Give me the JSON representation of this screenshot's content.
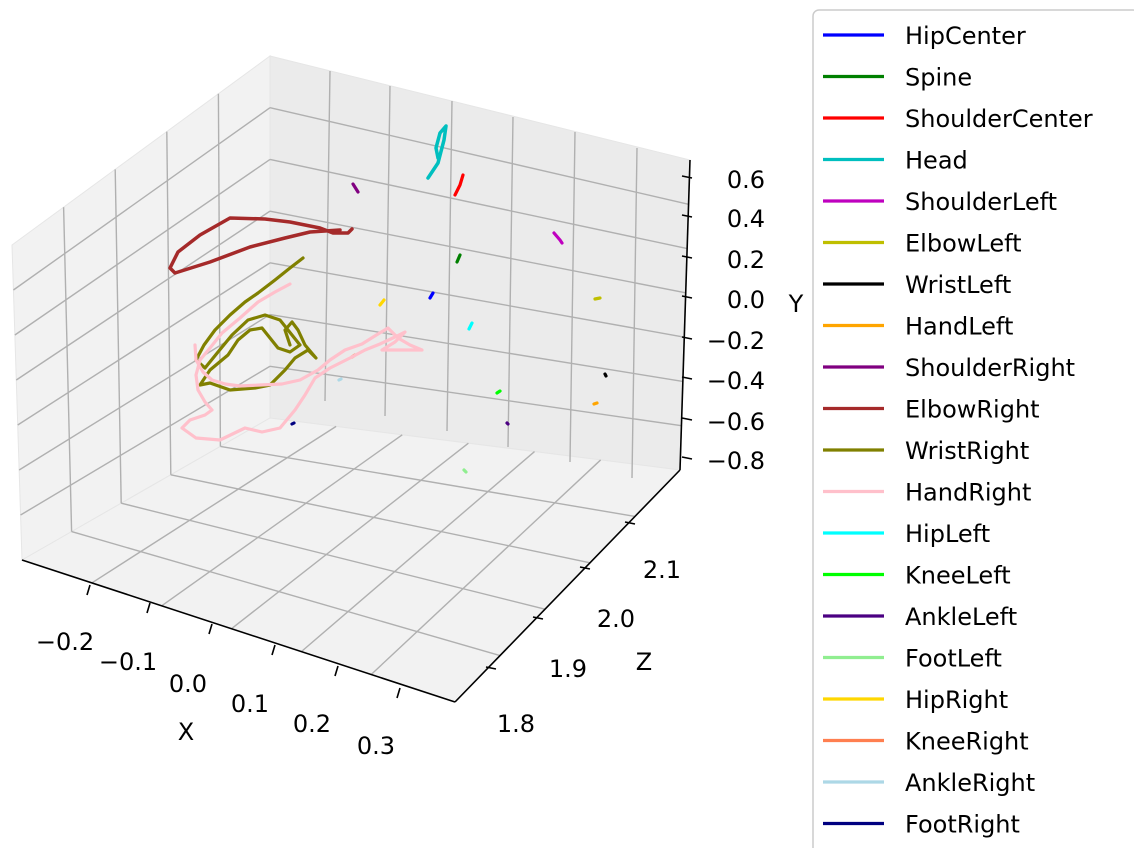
{
  "chart_data": {
    "type": "line",
    "projection": "3d",
    "title": "",
    "xlabel": "X",
    "ylabel": "Y",
    "zlabel": "Z",
    "x_ticks": [
      "−0.2",
      "−0.1",
      "0.0",
      "0.1",
      "0.2",
      "0.3"
    ],
    "y_ticks": [
      "0.6",
      "0.4",
      "0.2",
      "0.0",
      "−0.2",
      "−0.4",
      "−0.6",
      "−0.8"
    ],
    "z_ticks": [
      "2.1",
      "2.0",
      "1.9",
      "1.8"
    ],
    "grid": true,
    "legend_position": "right",
    "series": [
      {
        "name": "HipCenter",
        "color": "#0000ff"
      },
      {
        "name": "Spine",
        "color": "#008000"
      },
      {
        "name": "ShoulderCenter",
        "color": "#ff0000"
      },
      {
        "name": "Head",
        "color": "#00bfbf"
      },
      {
        "name": "ShoulderLeft",
        "color": "#bf00bf"
      },
      {
        "name": "ElbowLeft",
        "color": "#bfbf00"
      },
      {
        "name": "WristLeft",
        "color": "#000000"
      },
      {
        "name": "HandLeft",
        "color": "#ffa500"
      },
      {
        "name": "ShoulderRight",
        "color": "#800080"
      },
      {
        "name": "ElbowRight",
        "color": "#a52a2a"
      },
      {
        "name": "WristRight",
        "color": "#808000"
      },
      {
        "name": "HandRight",
        "color": "#ffc0cb"
      },
      {
        "name": "HipLeft",
        "color": "#00ffff"
      },
      {
        "name": "KneeLeft",
        "color": "#00ff00"
      },
      {
        "name": "AnkleLeft",
        "color": "#4b0082"
      },
      {
        "name": "FootLeft",
        "color": "#90ee90"
      },
      {
        "name": "HipRight",
        "color": "#ffd700"
      },
      {
        "name": "KneeRight",
        "color": "#ff7f50"
      },
      {
        "name": "AnkleRight",
        "color": "#add8e6"
      },
      {
        "name": "FootRight",
        "color": "#000080"
      }
    ]
  }
}
